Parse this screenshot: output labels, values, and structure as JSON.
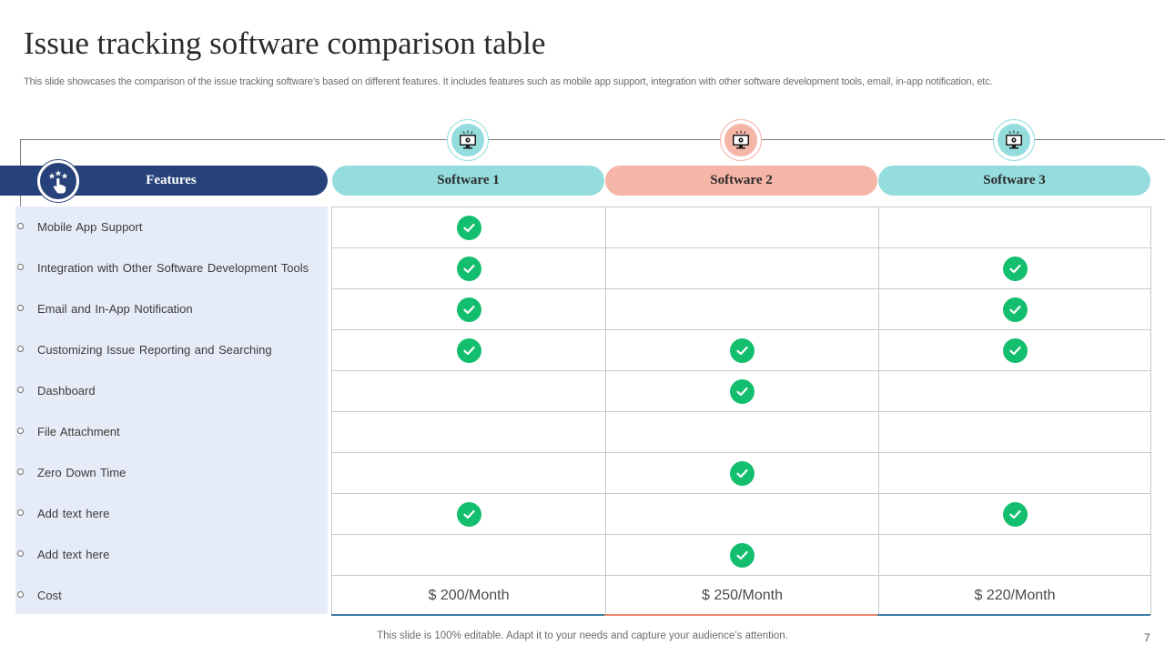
{
  "slide": {
    "title": "Issue tracking software comparison table",
    "subtitle": "This slide showcases the comparison of the issue tracking software’s based on different features. It includes features such as mobile app support, integration with other software development tools, email, in-app notification, etc.",
    "footer": "This slide is 100% editable. Adapt it to your needs and capture your audience’s attention.",
    "page_number": "7"
  },
  "table": {
    "features_header": "Features",
    "features_icon": "hand-pointer-stars-icon",
    "software": [
      {
        "name": "Software 1",
        "color": "#95dcdd",
        "icon": "monitor-settings-icon"
      },
      {
        "name": "Software 2",
        "color": "#f5b5a7",
        "icon": "monitor-settings-icon"
      },
      {
        "name": "Software 3",
        "color": "#95dcdd",
        "icon": "monitor-settings-icon"
      }
    ],
    "rows": [
      {
        "feature": "Mobile App Support",
        "values": [
          true,
          false,
          false
        ]
      },
      {
        "feature": "Integration with Other Software Development  Tools",
        "values": [
          true,
          false,
          true
        ]
      },
      {
        "feature": "Email and In-App Notification",
        "values": [
          true,
          false,
          true
        ]
      },
      {
        "feature": "Customizing Issue Reporting and Searching",
        "values": [
          true,
          true,
          true
        ]
      },
      {
        "feature": "Dashboard",
        "values": [
          false,
          true,
          false
        ]
      },
      {
        "feature": "File Attachment",
        "values": [
          false,
          false,
          false
        ]
      },
      {
        "feature": "Zero Down Time",
        "values": [
          false,
          true,
          false
        ]
      },
      {
        "feature": "Add text here",
        "values": [
          true,
          false,
          true
        ]
      },
      {
        "feature": "Add text here",
        "values": [
          false,
          true,
          false
        ]
      },
      {
        "feature": "Cost",
        "values": [
          "$ 200/Month",
          "$ 250/Month",
          "$ 220/Month"
        ]
      }
    ],
    "colors": {
      "features_bar": "#27427a",
      "feature_panel": "#e6ecf7",
      "check": "#14be6f",
      "software_teal": "#95dcdd",
      "software_salmon": "#f5b5a7"
    }
  }
}
